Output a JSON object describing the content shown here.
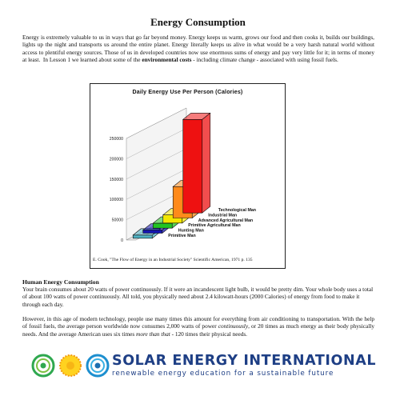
{
  "document": {
    "title": "Energy Consumption",
    "intro_paragraph_html": "Energy is extremely valuable to us in ways that go far beyond money. Energy keeps us warm, grows our food and then cooks it, builds our buildings, lights up the night and transports us around the entire planet. Energy literally keeps us alive in what would be a very harsh natural world without access to plentiful energy sources. Those of us in developed countries now use enormous sums of energy and pay very little for it; in terms of money at least.&nbsp; In Lesson 1 we learned about some of the <b>environmental costs</b> - including climate change - associated with using fossil fuels.",
    "section_heading": "Human Energy Consumption",
    "paragraph_1": "Your brain consumes about 20 watts of power continuously. If it were an incandescent light bulb, it would be pretty dim. Your whole body uses a total of about 100 watts of power continuously. All told, you physically need about 2.4 kilowatt-hours (2000 Calories) of energy from food to make it through each day.",
    "paragraph_2_html": "However, in this age of modern technology, people use many times this amount for everything from air conditioning to transportation. With the help of fossil fuels, the average person worldwide now consumes 2,000 watts of power <i>continuously</i>, or 20 times as much energy as their body physically needs. And the average American uses six times <i>more than that</i> - 120 times their physical needs."
  },
  "chart_data": {
    "type": "bar",
    "title": "Daily Energy Use Per Person (Calories)",
    "categories": [
      "Primitive Man",
      "Hunting Man",
      "Primitive Agricultural Man",
      "Advanced Agricultural Man",
      "Industrial Man",
      "Technological Man"
    ],
    "values": [
      2000,
      5000,
      12000,
      20000,
      77000,
      230000
    ],
    "colors": [
      "#4fb3c4",
      "#1515b0",
      "#22c422",
      "#f2e600",
      "#ff8a1a",
      "#ee1111"
    ],
    "ylim": [
      0,
      250000
    ],
    "yticks": [
      "0",
      "50000",
      "100000",
      "150000",
      "200000",
      "250000"
    ],
    "caption": "E. Cook, \"The Flow of Energy in an Industrial Society\" Scientific American, 1971 p. 135"
  },
  "footer": {
    "org_name": "SOLAR ENERGY INTERNATIONAL",
    "tagline": "renewable energy education for a sustainable future",
    "logo_icon": "sei-logo-icon",
    "brand_color": "#1e3f85"
  }
}
